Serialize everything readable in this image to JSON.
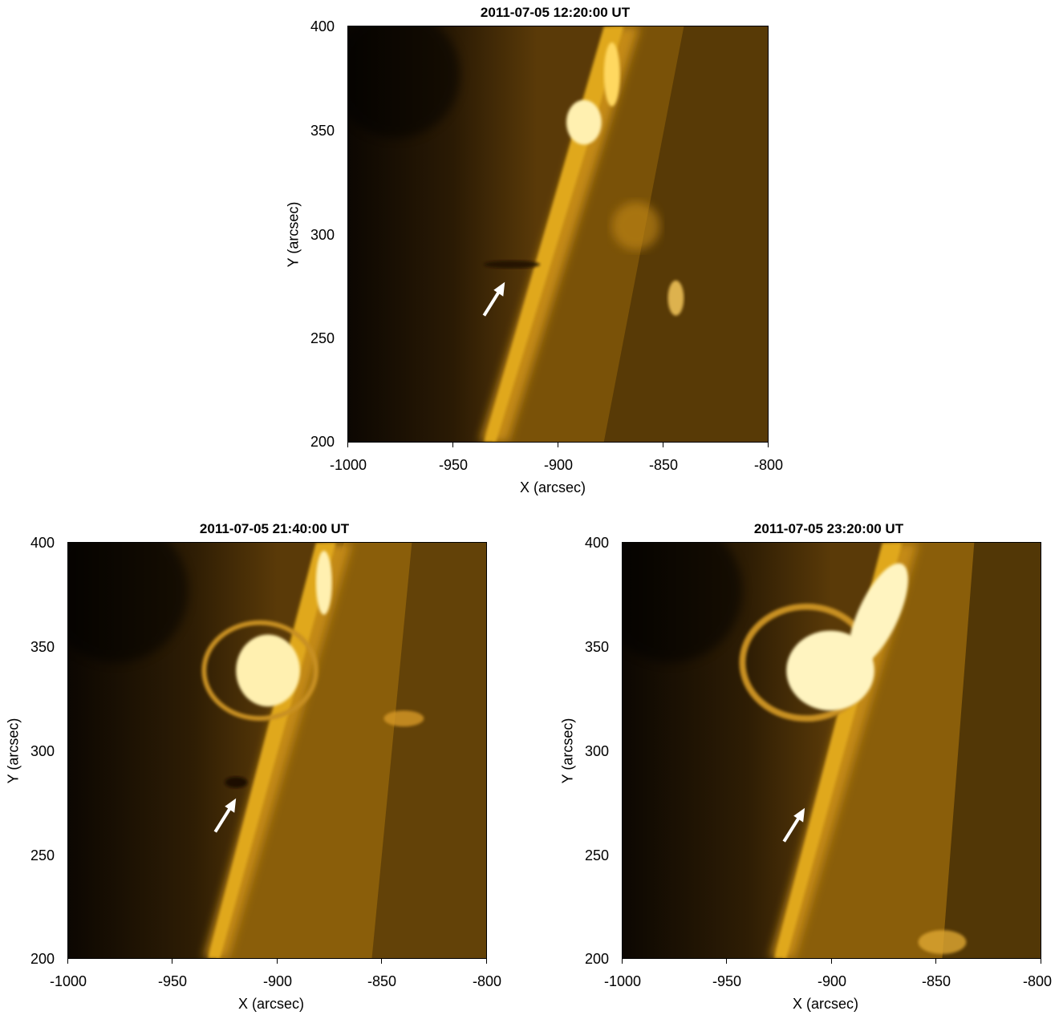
{
  "panels": [
    {
      "id": "top",
      "title": "2011-07-05 12:20:00 UT",
      "xlabel": "X (arcsec)",
      "ylabel": "Y (arcsec)",
      "xticks": [
        "-1000",
        "-950",
        "-900",
        "-850",
        "-800"
      ],
      "yticks": [
        "400",
        "350",
        "300",
        "250",
        "200"
      ]
    },
    {
      "id": "bottom-left",
      "title": "2011-07-05 21:40:00 UT",
      "xlabel": "X (arcsec)",
      "ylabel": "Y (arcsec)",
      "xticks": [
        "-1000",
        "-950",
        "-900",
        "-850",
        "-800"
      ],
      "yticks": [
        "400",
        "350",
        "300",
        "250",
        "200"
      ]
    },
    {
      "id": "bottom-right",
      "title": "2011-07-05 23:20:00 UT",
      "xlabel": "X (arcsec)",
      "ylabel": "Y (arcsec)",
      "xticks": [
        "-1000",
        "-950",
        "-900",
        "-850",
        "-800"
      ],
      "yticks": [
        "400",
        "350",
        "300",
        "250",
        "200"
      ]
    }
  ],
  "colors": {
    "background": "#ffffff",
    "space": "#0f0a02",
    "corona": "#c08a10",
    "bright": "#ffe890",
    "arrow": "#ffffff"
  },
  "icons": [
    "arrow-icon"
  ]
}
